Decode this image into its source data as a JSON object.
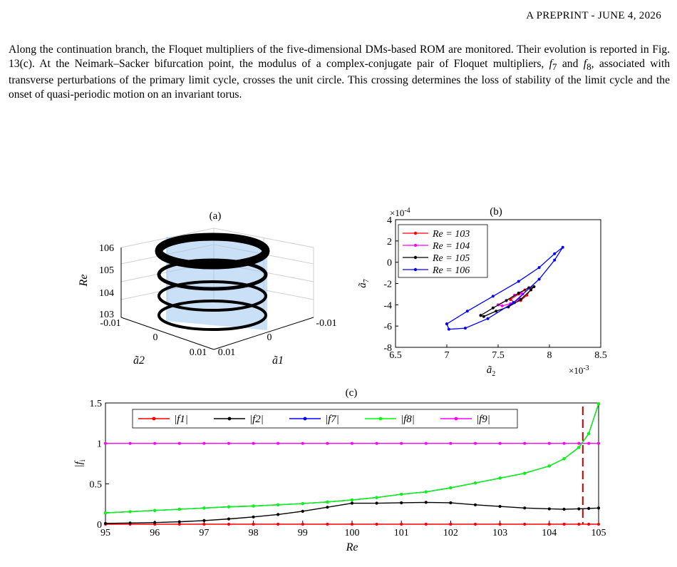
{
  "header": {
    "running_title": "A PREPRINT - JUNE 4, 2026"
  },
  "paragraph": {
    "s1": "Along the continuation branch, the Floquet multipliers of the five-dimensional DMs-based ROM are monitored. Their evolution is reported in Fig. 13(c). At the Neimark–Sacker bifurcation point, the modulus of a complex-conjugate pair of Floquet multipliers, ",
    "f7": "f",
    "f7sub": "7",
    "and": " and ",
    "f8": "f",
    "f8sub": "8",
    "s2": ", associated with transverse perturbations of the primary limit cycle, crosses the unit circle. This crossing determines the loss of stability of the limit cycle and the onset of quasi-periodic motion on an invariant torus."
  },
  "figure": {
    "panel_a": {
      "label": "(a)",
      "zlabel": "Re",
      "xlabel": "ã2",
      "ylabel": "ã1",
      "z_ticks": [
        "103",
        "104",
        "105",
        "106"
      ],
      "x_ticks": [
        "-0.01",
        "0",
        "0.01"
      ],
      "y_ticks": [
        "0.01",
        "0",
        "-0.01"
      ]
    },
    "panel_b": {
      "label": "(b)"
    },
    "panel_c": {
      "label": "(c)"
    }
  },
  "chart_data": [
    {
      "type": "line",
      "panel": "(b)",
      "xlabel": "ã2",
      "ylabel": "ã7",
      "x_multiplier": "×10-3",
      "y_multiplier": "×10-4",
      "xlim": [
        6.5,
        8.5
      ],
      "ylim": [
        -8,
        4
      ],
      "x_ticks": [
        "6.5",
        "7",
        "7.5",
        "8",
        "8.5"
      ],
      "y_ticks": [
        "4",
        "2",
        "0",
        "-2",
        "-4",
        "-6",
        "-8"
      ],
      "legend_position": "top-left",
      "series": [
        {
          "name": "Re = 103",
          "color": "#ff0000",
          "x": [
            7.62,
            7.7,
            7.76,
            7.8,
            7.82,
            7.78,
            7.72,
            7.66,
            7.62
          ],
          "y": [
            -3.5,
            -3.0,
            -2.6,
            -2.4,
            -2.5,
            -3.1,
            -3.6,
            -3.8,
            -3.5
          ]
        },
        {
          "name": "Re = 104",
          "color": "#ff00ff",
          "x": [
            7.5,
            7.58,
            7.66,
            7.72,
            7.74,
            7.7,
            7.62,
            7.54,
            7.5
          ],
          "y": [
            -4.0,
            -3.6,
            -3.1,
            -2.9,
            -3.0,
            -3.5,
            -3.9,
            -4.1,
            -4.0
          ]
        },
        {
          "name": "Re = 105",
          "color": "#000000",
          "x": [
            7.33,
            7.45,
            7.58,
            7.7,
            7.8,
            7.85,
            7.82,
            7.72,
            7.6,
            7.48,
            7.36,
            7.33
          ],
          "y": [
            -5.0,
            -4.3,
            -3.6,
            -2.9,
            -2.4,
            -2.3,
            -2.6,
            -3.5,
            -4.2,
            -4.6,
            -5.1,
            -5.0
          ]
        },
        {
          "name": "Re = 106",
          "color": "#0000ff",
          "x": [
            7.0,
            7.2,
            7.45,
            7.7,
            7.9,
            8.05,
            8.13,
            8.05,
            7.9,
            7.65,
            7.4,
            7.18,
            7.02,
            7.0
          ],
          "y": [
            -5.8,
            -4.6,
            -3.2,
            -1.8,
            -0.5,
            0.8,
            1.4,
            0.2,
            -1.6,
            -3.8,
            -5.3,
            -6.2,
            -6.3,
            -5.8
          ]
        }
      ]
    },
    {
      "type": "line",
      "panel": "(c)",
      "xlabel": "Re",
      "ylabel": "|fi|",
      "xlim": [
        95,
        105
      ],
      "ylim": [
        0,
        1.5
      ],
      "x_ticks": [
        "95",
        "96",
        "97",
        "98",
        "99",
        "100",
        "101",
        "102",
        "103",
        "104",
        "105"
      ],
      "y_ticks": [
        "0",
        "0.5",
        "1",
        "1.5"
      ],
      "legend_position": "top",
      "bifurcation_Re": 104.68,
      "x": [
        95,
        95.5,
        96,
        96.5,
        97,
        97.5,
        98,
        98.5,
        99,
        99.5,
        100,
        100.5,
        101,
        101.5,
        102,
        102.5,
        103,
        103.5,
        104,
        104.3,
        104.6,
        104.8,
        105
      ],
      "series": [
        {
          "name": "|f1|",
          "color": "#ff0000",
          "values": [
            0,
            0,
            0,
            0,
            0,
            0,
            0,
            0,
            0,
            0,
            0,
            0,
            0,
            0,
            0,
            0,
            0,
            0,
            0,
            0,
            0,
            0,
            0
          ]
        },
        {
          "name": "|f2|",
          "color": "#000000",
          "values": [
            0.01,
            0.015,
            0.02,
            0.03,
            0.045,
            0.065,
            0.09,
            0.12,
            0.16,
            0.21,
            0.26,
            0.26,
            0.265,
            0.27,
            0.265,
            0.24,
            0.22,
            0.2,
            0.19,
            0.185,
            0.19,
            0.195,
            0.2
          ]
        },
        {
          "name": "|f7|",
          "color": "#0000ff",
          "values": [
            0.14,
            0.155,
            0.17,
            0.185,
            0.2,
            0.215,
            0.225,
            0.24,
            0.255,
            0.275,
            0.3,
            0.33,
            0.37,
            0.4,
            0.45,
            0.51,
            0.57,
            0.63,
            0.72,
            0.81,
            0.95,
            1.12,
            1.49
          ]
        },
        {
          "name": "|f8|",
          "color": "#00ff00",
          "values": [
            0.14,
            0.155,
            0.17,
            0.185,
            0.2,
            0.215,
            0.225,
            0.24,
            0.255,
            0.275,
            0.3,
            0.33,
            0.37,
            0.4,
            0.45,
            0.51,
            0.57,
            0.63,
            0.72,
            0.81,
            0.95,
            1.12,
            1.49
          ]
        },
        {
          "name": "|f9|",
          "color": "#ff00ff",
          "values": [
            1,
            1,
            1,
            1,
            1,
            1,
            1,
            1,
            1,
            1,
            1,
            1,
            1,
            1,
            1,
            1,
            1,
            1,
            1,
            1,
            1,
            1,
            1
          ]
        }
      ]
    }
  ]
}
